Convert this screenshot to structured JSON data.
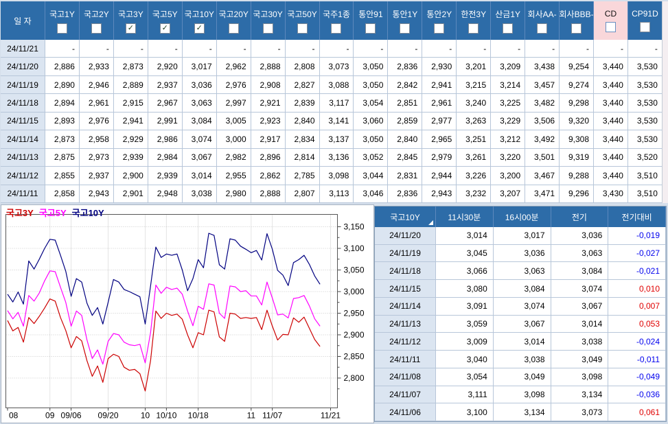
{
  "top_table": {
    "date_header": "일 자",
    "columns": [
      {
        "label": "국고1Y",
        "checked": false,
        "highlight": false
      },
      {
        "label": "국고2Y",
        "checked": false,
        "highlight": false
      },
      {
        "label": "국고3Y",
        "checked": true,
        "highlight": false
      },
      {
        "label": "국고5Y",
        "checked": true,
        "highlight": false
      },
      {
        "label": "국고10Y",
        "checked": true,
        "highlight": false
      },
      {
        "label": "국고20Y",
        "checked": false,
        "highlight": false
      },
      {
        "label": "국고30Y",
        "checked": false,
        "highlight": false
      },
      {
        "label": "국고50Y",
        "checked": false,
        "highlight": false
      },
      {
        "label": "국주1종",
        "checked": false,
        "highlight": false
      },
      {
        "label": "통안91",
        "checked": false,
        "highlight": false
      },
      {
        "label": "통안1Y",
        "checked": false,
        "highlight": false
      },
      {
        "label": "통안2Y",
        "checked": false,
        "highlight": false
      },
      {
        "label": "한전3Y",
        "checked": false,
        "highlight": false
      },
      {
        "label": "산금1Y",
        "checked": false,
        "highlight": false
      },
      {
        "label": "회사AA-",
        "checked": false,
        "highlight": false
      },
      {
        "label": "회사BBB-",
        "checked": false,
        "highlight": false
      },
      {
        "label": "CD",
        "checked": false,
        "highlight": true
      },
      {
        "label": "CP91D",
        "checked": false,
        "highlight": false
      }
    ],
    "rows": [
      {
        "date": "24/11/21",
        "values": [
          "-",
          "-",
          "-",
          "-",
          "-",
          "-",
          "-",
          "-",
          "-",
          "-",
          "-",
          "-",
          "-",
          "-",
          "-",
          "-",
          "-",
          "-"
        ]
      },
      {
        "date": "24/11/20",
        "values": [
          "2,886",
          "2,933",
          "2,873",
          "2,920",
          "3,017",
          "2,962",
          "2,888",
          "2,808",
          "3,073",
          "3,050",
          "2,836",
          "2,930",
          "3,201",
          "3,209",
          "3,438",
          "9,254",
          "3,440",
          "3,530"
        ]
      },
      {
        "date": "24/11/19",
        "values": [
          "2,890",
          "2,946",
          "2,889",
          "2,937",
          "3,036",
          "2,976",
          "2,908",
          "2,827",
          "3,088",
          "3,050",
          "2,842",
          "2,941",
          "3,215",
          "3,214",
          "3,457",
          "9,274",
          "3,440",
          "3,530"
        ]
      },
      {
        "date": "24/11/18",
        "values": [
          "2,894",
          "2,961",
          "2,915",
          "2,967",
          "3,063",
          "2,997",
          "2,921",
          "2,839",
          "3,117",
          "3,054",
          "2,851",
          "2,961",
          "3,240",
          "3,225",
          "3,482",
          "9,298",
          "3,440",
          "3,530"
        ]
      },
      {
        "date": "24/11/15",
        "values": [
          "2,893",
          "2,976",
          "2,941",
          "2,991",
          "3,084",
          "3,005",
          "2,923",
          "2,840",
          "3,141",
          "3,060",
          "2,859",
          "2,977",
          "3,263",
          "3,229",
          "3,506",
          "9,320",
          "3,440",
          "3,530"
        ]
      },
      {
        "date": "24/11/14",
        "values": [
          "2,873",
          "2,958",
          "2,929",
          "2,986",
          "3,074",
          "3,000",
          "2,917",
          "2,834",
          "3,137",
          "3,050",
          "2,840",
          "2,965",
          "3,251",
          "3,212",
          "3,492",
          "9,308",
          "3,440",
          "3,530"
        ]
      },
      {
        "date": "24/11/13",
        "values": [
          "2,875",
          "2,973",
          "2,939",
          "2,984",
          "3,067",
          "2,982",
          "2,896",
          "2,814",
          "3,136",
          "3,052",
          "2,845",
          "2,979",
          "3,261",
          "3,220",
          "3,501",
          "9,319",
          "3,440",
          "3,520"
        ]
      },
      {
        "date": "24/11/12",
        "values": [
          "2,855",
          "2,937",
          "2,900",
          "2,939",
          "3,014",
          "2,955",
          "2,862",
          "2,785",
          "3,098",
          "3,044",
          "2,831",
          "2,944",
          "3,226",
          "3,200",
          "3,467",
          "9,288",
          "3,440",
          "3,510"
        ]
      },
      {
        "date": "24/11/11",
        "values": [
          "2,858",
          "2,943",
          "2,901",
          "2,948",
          "3,038",
          "2,980",
          "2,888",
          "2,807",
          "3,113",
          "3,046",
          "2,836",
          "2,943",
          "3,232",
          "3,207",
          "3,471",
          "9,296",
          "3,430",
          "3,510"
        ]
      }
    ]
  },
  "chart_data": {
    "type": "line",
    "legend_position": "top-left",
    "grid": true,
    "ylim": [
      2.733,
      3.179
    ],
    "yticks": [
      3.15,
      3.1,
      3.05,
      3.0,
      2.95,
      2.9,
      2.85,
      2.8
    ],
    "ytick_labels": [
      "3,150",
      "3,100",
      "3,050",
      "3,000",
      "2,950",
      "2,900",
      "2,850",
      "2,800"
    ],
    "x_slots": 62,
    "x_ticks": [
      {
        "i": 0,
        "label": "08"
      },
      {
        "i": 8,
        "label": "09"
      },
      {
        "i": 12,
        "label": "09/06"
      },
      {
        "i": 19,
        "label": "09/20"
      },
      {
        "i": 26,
        "label": "10"
      },
      {
        "i": 30,
        "label": "10/10"
      },
      {
        "i": 36,
        "label": "10/18"
      },
      {
        "i": 46,
        "label": "11"
      },
      {
        "i": 50,
        "label": "11/07"
      },
      {
        "i": 61,
        "label": "11/21"
      }
    ],
    "series": [
      {
        "name": "국고3Y",
        "color": "#cc0000",
        "values": [
          2.933,
          2.909,
          2.917,
          2.883,
          2.94,
          2.926,
          2.943,
          2.962,
          2.983,
          2.978,
          2.94,
          2.91,
          2.87,
          2.896,
          2.886,
          2.84,
          2.804,
          2.828,
          2.79,
          2.845,
          2.855,
          2.85,
          2.825,
          2.818,
          2.82,
          2.81,
          2.77,
          2.84,
          2.955,
          2.938,
          2.95,
          2.945,
          2.948,
          2.936,
          2.9,
          2.87,
          2.905,
          2.9,
          2.957,
          2.953,
          2.895,
          2.885,
          2.95,
          2.948,
          2.938,
          2.94,
          2.938,
          2.94,
          2.912,
          2.957,
          2.92,
          2.888,
          2.901,
          2.9,
          2.939,
          2.929,
          2.941,
          2.915,
          2.889,
          2.873
        ]
      },
      {
        "name": "국고5Y",
        "color": "#ff00ff",
        "values": [
          2.956,
          2.937,
          2.952,
          2.92,
          2.991,
          2.978,
          2.997,
          3.025,
          3.048,
          3.046,
          3.01,
          2.975,
          2.92,
          2.955,
          2.945,
          2.888,
          2.845,
          2.865,
          2.832,
          2.885,
          2.903,
          2.9,
          2.883,
          2.877,
          2.875,
          2.878,
          2.835,
          2.905,
          3.015,
          2.996,
          3.01,
          3.005,
          3.008,
          2.994,
          2.955,
          2.921,
          2.966,
          2.959,
          3.018,
          3.015,
          2.95,
          2.938,
          3.013,
          3.011,
          3.0,
          3.002,
          2.99,
          2.99,
          2.969,
          3.022,
          2.985,
          2.946,
          2.948,
          2.939,
          2.984,
          2.986,
          2.991,
          2.967,
          2.937,
          2.92
        ]
      },
      {
        "name": "국고10Y",
        "color": "#000080",
        "values": [
          2.994,
          2.976,
          2.999,
          2.971,
          3.071,
          3.052,
          3.075,
          3.1,
          3.121,
          3.119,
          3.084,
          3.047,
          2.989,
          3.03,
          3.022,
          2.973,
          2.945,
          2.963,
          2.925,
          2.975,
          3.028,
          3.022,
          3.005,
          3.0,
          2.994,
          2.988,
          2.925,
          3.013,
          3.103,
          3.079,
          3.087,
          3.084,
          3.087,
          3.05,
          3.002,
          3.03,
          3.074,
          3.055,
          3.135,
          3.13,
          3.062,
          3.052,
          3.122,
          3.119,
          3.105,
          3.098,
          3.09,
          3.095,
          3.073,
          3.134,
          3.098,
          3.049,
          3.038,
          3.014,
          3.067,
          3.074,
          3.084,
          3.063,
          3.036,
          3.017
        ]
      }
    ]
  },
  "detail_table": {
    "headers": [
      "국고10Y",
      "11시30분",
      "16시00분",
      "전기",
      "전기대비"
    ],
    "rows": [
      {
        "date": "24/11/20",
        "t1130": "3,014",
        "t1600": "3,017",
        "prev": "3,036",
        "change": "-0,019",
        "dir": "down"
      },
      {
        "date": "24/11/19",
        "t1130": "3,045",
        "t1600": "3,036",
        "prev": "3,063",
        "change": "-0,027",
        "dir": "down"
      },
      {
        "date": "24/11/18",
        "t1130": "3,066",
        "t1600": "3,063",
        "prev": "3,084",
        "change": "-0,021",
        "dir": "down"
      },
      {
        "date": "24/11/15",
        "t1130": "3,080",
        "t1600": "3,084",
        "prev": "3,074",
        "change": "0,010",
        "dir": "up"
      },
      {
        "date": "24/11/14",
        "t1130": "3,091",
        "t1600": "3,074",
        "prev": "3,067",
        "change": "0,007",
        "dir": "up"
      },
      {
        "date": "24/11/13",
        "t1130": "3,059",
        "t1600": "3,067",
        "prev": "3,014",
        "change": "0,053",
        "dir": "up"
      },
      {
        "date": "24/11/12",
        "t1130": "3,009",
        "t1600": "3,014",
        "prev": "3,038",
        "change": "-0,024",
        "dir": "down"
      },
      {
        "date": "24/11/11",
        "t1130": "3,040",
        "t1600": "3,038",
        "prev": "3,049",
        "change": "-0,011",
        "dir": "down"
      },
      {
        "date": "24/11/08",
        "t1130": "3,054",
        "t1600": "3,049",
        "prev": "3,098",
        "change": "-0,049",
        "dir": "down"
      },
      {
        "date": "24/11/07",
        "t1130": "3,111",
        "t1600": "3,098",
        "prev": "3,134",
        "change": "-0,036",
        "dir": "down"
      },
      {
        "date": "24/11/06",
        "t1130": "3,100",
        "t1600": "3,134",
        "prev": "3,073",
        "change": "0,061",
        "dir": "up"
      }
    ]
  },
  "colors": {
    "header_blue": "#2d6ca8",
    "date_cell": "#dbe5f1",
    "cd_highlight": "#f9d7da",
    "change_up": "#e00000",
    "change_down": "#0000ee"
  },
  "icons": {
    "checked_mark": "✓",
    "sort_indicator": "corner-triangle"
  }
}
